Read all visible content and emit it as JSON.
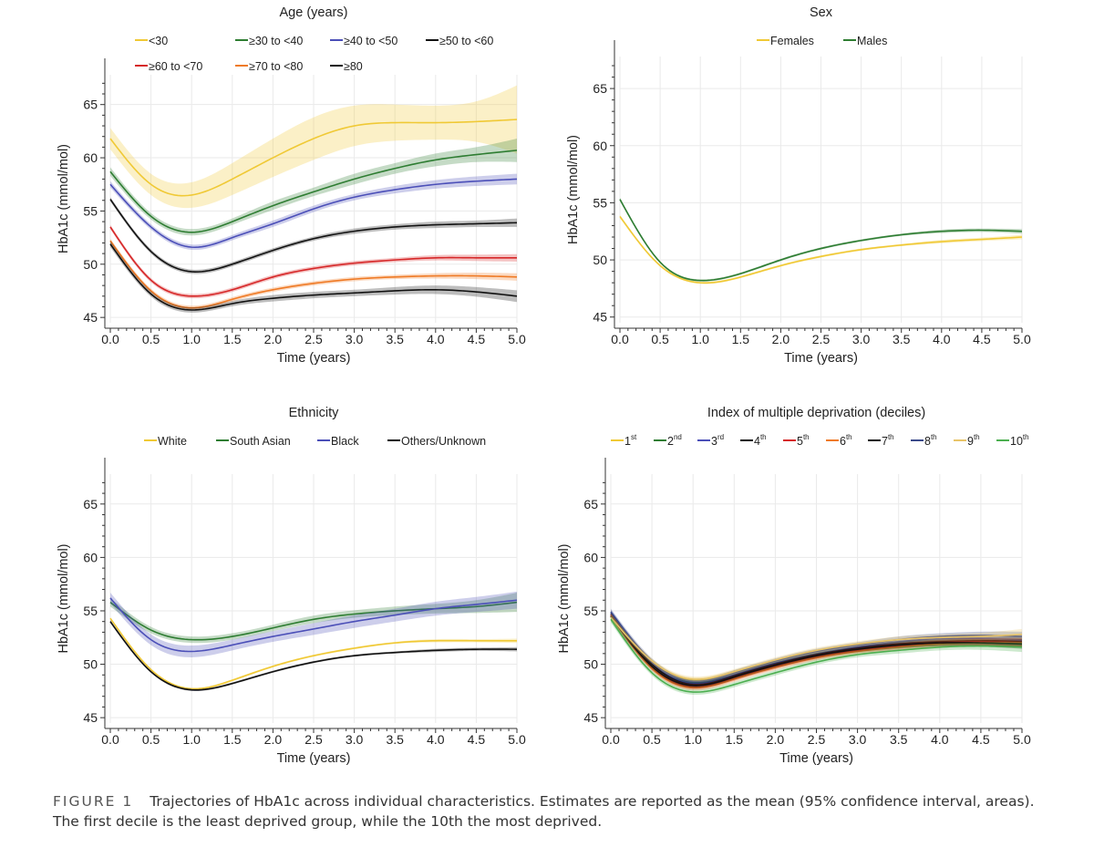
{
  "figure": {
    "label": "FIGURE 1",
    "caption": "Trajectories of HbA1c across individual characteristics. Estimates are reported as the mean (95% confidence interval, areas). The first decile is the least deprived group, while the 10th the most deprived."
  },
  "chart_data": [
    {
      "type": "line",
      "title": "Age (years)",
      "xlabel": "Time (years)",
      "ylabel": "HbA1c (mmol/mol)",
      "xlim": [
        0,
        5
      ],
      "ylim": [
        44.5,
        67.8
      ],
      "xticks": [
        0.0,
        0.5,
        1.0,
        1.5,
        2.0,
        2.5,
        3.0,
        3.5,
        4.0,
        4.5,
        5.0
      ],
      "yticks": [
        45,
        50,
        55,
        60,
        65
      ],
      "legend_rows": 2,
      "x": [
        0,
        0.5,
        1,
        1.5,
        2,
        2.5,
        3,
        3.5,
        4,
        4.5,
        5
      ],
      "series": [
        {
          "name": "<30",
          "color": "#f0c935",
          "values": [
            61.8,
            57.5,
            56.5,
            58.0,
            60.0,
            61.8,
            63.0,
            63.3,
            63.3,
            63.4,
            63.6
          ],
          "ci": [
            1.0,
            1.0,
            1.2,
            1.5,
            1.8,
            2.0,
            1.9,
            1.7,
            1.6,
            1.9,
            3.2
          ]
        },
        {
          "name": "≥30 to <40",
          "color": "#2e7d32",
          "values": [
            58.7,
            54.5,
            53.0,
            54.0,
            55.5,
            56.8,
            58.0,
            59.0,
            59.8,
            60.3,
            60.7
          ],
          "ci": [
            0.4,
            0.3,
            0.3,
            0.3,
            0.4,
            0.4,
            0.5,
            0.5,
            0.6,
            0.7,
            1.1
          ]
        },
        {
          "name": "≥40 to <50",
          "color": "#4b4fb8",
          "values": [
            57.5,
            53.5,
            51.6,
            52.5,
            53.8,
            55.2,
            56.3,
            57.0,
            57.5,
            57.8,
            58.0
          ],
          "ci": [
            0.3,
            0.25,
            0.25,
            0.25,
            0.3,
            0.3,
            0.3,
            0.35,
            0.4,
            0.45,
            0.5
          ]
        },
        {
          "name": "≥50 to <60",
          "color": "#111111",
          "values": [
            56.1,
            51.2,
            49.3,
            50.0,
            51.3,
            52.4,
            53.1,
            53.5,
            53.7,
            53.8,
            53.9
          ],
          "ci": [
            0.2,
            0.2,
            0.2,
            0.2,
            0.2,
            0.2,
            0.25,
            0.25,
            0.3,
            0.3,
            0.4
          ]
        },
        {
          "name": "≥60 to <70",
          "color": "#d62728",
          "values": [
            53.5,
            48.5,
            47.0,
            47.6,
            48.8,
            49.6,
            50.1,
            50.4,
            50.6,
            50.6,
            50.6
          ],
          "ci": [
            0.2,
            0.2,
            0.2,
            0.2,
            0.2,
            0.2,
            0.2,
            0.2,
            0.25,
            0.3,
            0.35
          ]
        },
        {
          "name": "≥70 to <80",
          "color": "#ef7a25",
          "values": [
            52.2,
            47.5,
            45.9,
            46.7,
            47.6,
            48.2,
            48.6,
            48.8,
            48.9,
            48.9,
            48.8
          ],
          "ci": [
            0.2,
            0.2,
            0.2,
            0.2,
            0.2,
            0.2,
            0.2,
            0.2,
            0.25,
            0.3,
            0.35
          ]
        },
        {
          "name": "≥80",
          "color": "#111111",
          "values": [
            51.9,
            47.2,
            45.7,
            46.3,
            46.8,
            47.1,
            47.3,
            47.5,
            47.6,
            47.4,
            47.0
          ],
          "ci": [
            0.3,
            0.25,
            0.25,
            0.25,
            0.3,
            0.3,
            0.3,
            0.35,
            0.4,
            0.45,
            0.55
          ]
        }
      ]
    },
    {
      "type": "line",
      "title": "Sex",
      "xlabel": "Time (years)",
      "ylabel": "HbA1c (mmol/mol)",
      "xlim": [
        0,
        5
      ],
      "ylim": [
        44.5,
        67.8
      ],
      "xticks": [
        0.0,
        0.5,
        1.0,
        1.5,
        2.0,
        2.5,
        3.0,
        3.5,
        4.0,
        4.5,
        5.0
      ],
      "yticks": [
        45,
        50,
        55,
        60,
        65
      ],
      "legend_rows": 1,
      "x": [
        0,
        0.5,
        1,
        1.5,
        2,
        2.5,
        3,
        3.5,
        4,
        4.5,
        5
      ],
      "series": [
        {
          "name": "Females",
          "color": "#f0c935",
          "values": [
            53.8,
            49.5,
            48.0,
            48.5,
            49.5,
            50.3,
            50.9,
            51.3,
            51.6,
            51.8,
            52.0
          ],
          "ci": [
            0.15,
            0.1,
            0.1,
            0.1,
            0.1,
            0.1,
            0.1,
            0.1,
            0.15,
            0.15,
            0.2
          ]
        },
        {
          "name": "Males",
          "color": "#2e7d32",
          "values": [
            55.3,
            49.8,
            48.2,
            48.8,
            50.0,
            51.0,
            51.7,
            52.2,
            52.5,
            52.6,
            52.5
          ],
          "ci": [
            0.15,
            0.1,
            0.1,
            0.1,
            0.1,
            0.1,
            0.1,
            0.1,
            0.15,
            0.15,
            0.2
          ]
        }
      ]
    },
    {
      "type": "line",
      "title": "Ethnicity",
      "xlabel": "Time (years)",
      "ylabel": "HbA1c (mmol/mol)",
      "xlim": [
        0,
        5
      ],
      "ylim": [
        44.5,
        67.8
      ],
      "xticks": [
        0.0,
        0.5,
        1.0,
        1.5,
        2.0,
        2.5,
        3.0,
        3.5,
        4.0,
        4.5,
        5.0
      ],
      "yticks": [
        45,
        50,
        55,
        60,
        65
      ],
      "legend_rows": 1,
      "x": [
        0,
        0.5,
        1,
        1.5,
        2,
        2.5,
        3,
        3.5,
        4,
        4.5,
        5
      ],
      "series": [
        {
          "name": "White",
          "color": "#f0c935",
          "values": [
            54.3,
            49.5,
            47.7,
            48.5,
            49.8,
            50.8,
            51.5,
            52.0,
            52.2,
            52.2,
            52.2
          ],
          "ci": [
            0.1,
            0.1,
            0.1,
            0.1,
            0.1,
            0.1,
            0.1,
            0.1,
            0.15,
            0.15,
            0.2
          ]
        },
        {
          "name": "South Asian",
          "color": "#2e7d32",
          "values": [
            55.8,
            53.2,
            52.3,
            52.6,
            53.4,
            54.2,
            54.7,
            55.0,
            55.2,
            55.4,
            55.8
          ],
          "ci": [
            0.4,
            0.3,
            0.3,
            0.3,
            0.3,
            0.35,
            0.35,
            0.4,
            0.45,
            0.6,
            0.9
          ]
        },
        {
          "name": "Black",
          "color": "#4b4fb8",
          "values": [
            56.2,
            52.3,
            51.2,
            51.8,
            52.6,
            53.3,
            54.0,
            54.6,
            55.2,
            55.6,
            56.0
          ],
          "ci": [
            0.5,
            0.5,
            0.55,
            0.5,
            0.5,
            0.55,
            0.6,
            0.6,
            0.65,
            0.7,
            0.8
          ]
        },
        {
          "name": "Others/Unknown",
          "color": "#111111",
          "values": [
            54.0,
            49.3,
            47.6,
            48.2,
            49.3,
            50.2,
            50.8,
            51.1,
            51.3,
            51.4,
            51.4
          ],
          "ci": [
            0.15,
            0.1,
            0.1,
            0.1,
            0.1,
            0.1,
            0.1,
            0.1,
            0.15,
            0.15,
            0.2
          ]
        }
      ]
    },
    {
      "type": "line",
      "title": "Index of multiple deprivation (deciles)",
      "xlabel": "Time (years)",
      "ylabel": "HbA1c (mmol/mol)",
      "xlim": [
        0,
        5
      ],
      "ylim": [
        44.5,
        67.8
      ],
      "xticks": [
        0.0,
        0.5,
        1.0,
        1.5,
        2.0,
        2.5,
        3.0,
        3.5,
        4.0,
        4.5,
        5.0
      ],
      "yticks": [
        45,
        50,
        55,
        60,
        65
      ],
      "legend_rows": 1,
      "x": [
        0,
        0.5,
        1,
        1.5,
        2,
        2.5,
        3,
        3.5,
        4,
        4.5,
        5
      ],
      "series": [
        {
          "name": "1",
          "sup": "st",
          "color": "#f0c935",
          "values": [
            54.4,
            50.2,
            48.5,
            49.2,
            50.1,
            50.9,
            51.4,
            51.8,
            52.0,
            52.0,
            52.0
          ],
          "ci": [
            0.3,
            0.25,
            0.25,
            0.25,
            0.25,
            0.25,
            0.25,
            0.3,
            0.3,
            0.35,
            0.45
          ]
        },
        {
          "name": "2",
          "sup": "nd",
          "color": "#2e7d32",
          "values": [
            54.6,
            50.0,
            48.3,
            49.0,
            50.0,
            50.8,
            51.4,
            51.8,
            52.0,
            52.1,
            52.0
          ],
          "ci": [
            0.3,
            0.25,
            0.25,
            0.25,
            0.25,
            0.25,
            0.25,
            0.3,
            0.3,
            0.35,
            0.45
          ]
        },
        {
          "name": "3",
          "sup": "rd",
          "color": "#4b4fb8",
          "values": [
            54.8,
            50.1,
            48.2,
            49.0,
            50.1,
            50.9,
            51.6,
            52.1,
            52.4,
            52.4,
            52.3
          ],
          "ci": [
            0.3,
            0.25,
            0.25,
            0.25,
            0.25,
            0.25,
            0.25,
            0.3,
            0.3,
            0.35,
            0.45
          ]
        },
        {
          "name": "4",
          "sup": "th",
          "color": "#111111",
          "values": [
            54.7,
            50.0,
            48.1,
            48.9,
            50.0,
            50.9,
            51.5,
            51.9,
            52.1,
            52.2,
            52.1
          ],
          "ci": [
            0.3,
            0.25,
            0.25,
            0.25,
            0.25,
            0.25,
            0.25,
            0.3,
            0.3,
            0.35,
            0.45
          ]
        },
        {
          "name": "5",
          "sup": "th",
          "color": "#d62728",
          "values": [
            54.6,
            49.7,
            47.9,
            48.7,
            49.8,
            50.7,
            51.3,
            51.7,
            52.0,
            52.1,
            52.0
          ],
          "ci": [
            0.3,
            0.25,
            0.25,
            0.25,
            0.25,
            0.25,
            0.25,
            0.3,
            0.3,
            0.35,
            0.45
          ]
        },
        {
          "name": "6",
          "sup": "th",
          "color": "#ef7a25",
          "values": [
            54.5,
            49.6,
            47.8,
            48.6,
            49.7,
            50.6,
            51.2,
            51.6,
            51.9,
            52.0,
            52.0
          ],
          "ci": [
            0.3,
            0.25,
            0.25,
            0.25,
            0.25,
            0.25,
            0.25,
            0.3,
            0.3,
            0.35,
            0.45
          ]
        },
        {
          "name": "7",
          "sup": "th",
          "color": "#111111",
          "values": [
            54.5,
            49.8,
            48.0,
            48.8,
            49.9,
            50.8,
            51.4,
            51.8,
            52.0,
            52.0,
            51.9
          ],
          "ci": [
            0.3,
            0.25,
            0.25,
            0.25,
            0.25,
            0.25,
            0.25,
            0.3,
            0.3,
            0.35,
            0.45
          ]
        },
        {
          "name": "8",
          "sup": "th",
          "color": "#3a4a8a",
          "values": [
            54.9,
            50.3,
            48.4,
            49.2,
            50.3,
            51.2,
            51.8,
            52.3,
            52.6,
            52.7,
            52.6
          ],
          "ci": [
            0.3,
            0.25,
            0.25,
            0.25,
            0.25,
            0.25,
            0.25,
            0.3,
            0.3,
            0.35,
            0.45
          ]
        },
        {
          "name": "9",
          "sup": "th",
          "color": "#e8c468",
          "values": [
            54.4,
            50.3,
            48.6,
            49.3,
            50.4,
            51.3,
            51.9,
            52.3,
            52.5,
            52.6,
            52.8
          ],
          "ci": [
            0.3,
            0.25,
            0.25,
            0.25,
            0.25,
            0.25,
            0.25,
            0.3,
            0.3,
            0.35,
            0.5
          ]
        },
        {
          "name": "10",
          "sup": "th",
          "color": "#4caf50",
          "values": [
            54.2,
            49.2,
            47.4,
            48.1,
            49.2,
            50.2,
            50.9,
            51.3,
            51.6,
            51.7,
            51.6
          ],
          "ci": [
            0.3,
            0.25,
            0.25,
            0.25,
            0.25,
            0.25,
            0.25,
            0.3,
            0.3,
            0.35,
            0.45
          ]
        }
      ]
    }
  ]
}
